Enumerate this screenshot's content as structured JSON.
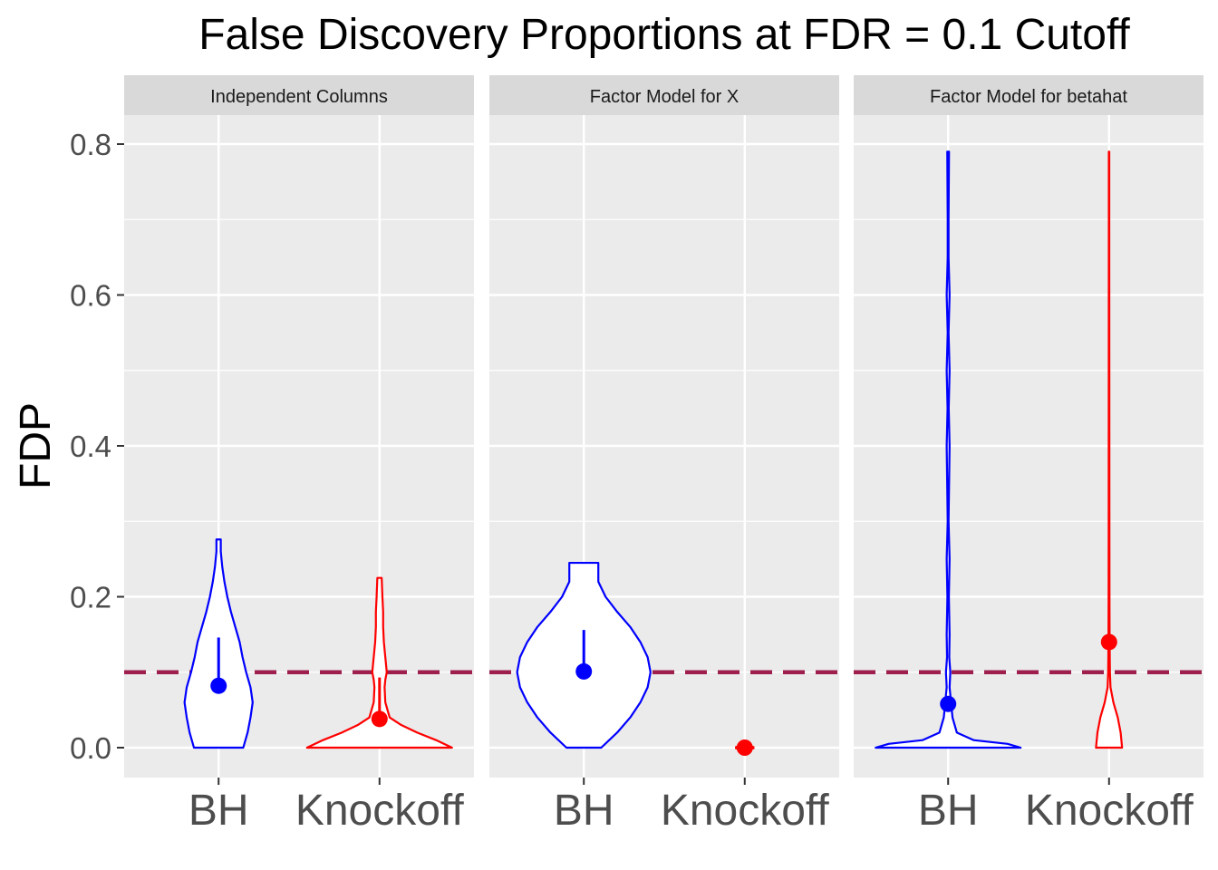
{
  "chart_data": {
    "type": "violin",
    "title": "False Discovery Proportions at FDR = 0.1 Cutoff",
    "ylabel": "FDP",
    "xlabel": "",
    "ylim": [
      -0.04,
      0.88
    ],
    "yticks": [
      0.0,
      0.2,
      0.4,
      0.6,
      0.8
    ],
    "ytick_labels": [
      "0.0",
      "0.2",
      "0.4",
      "0.6",
      "0.8"
    ],
    "categories": [
      "BH",
      "Knockoff"
    ],
    "reference_line": {
      "y": 0.1,
      "style": "dashed",
      "color": "#9e1f4e"
    },
    "grid": true,
    "legend": "none",
    "colors": {
      "BH": "#0000ff",
      "Knockoff": "#ff0000"
    },
    "panels": [
      {
        "label": "Independent Columns",
        "series": [
          {
            "category": "BH",
            "mean": 0.082,
            "upper": 0.146,
            "profile": [
              [
                0.0,
                0.34
              ],
              [
                0.02,
                0.4
              ],
              [
                0.04,
                0.44
              ],
              [
                0.06,
                0.47
              ],
              [
                0.08,
                0.44
              ],
              [
                0.1,
                0.38
              ],
              [
                0.12,
                0.33
              ],
              [
                0.14,
                0.29
              ],
              [
                0.16,
                0.23
              ],
              [
                0.18,
                0.17
              ],
              [
                0.2,
                0.12
              ],
              [
                0.22,
                0.08
              ],
              [
                0.24,
                0.05
              ],
              [
                0.26,
                0.03
              ],
              [
                0.276,
                0.03
              ]
            ]
          },
          {
            "category": "Knockoff",
            "mean": 0.038,
            "upper": 0.093,
            "profile": [
              [
                0.0,
                1.0
              ],
              [
                0.01,
                0.78
              ],
              [
                0.02,
                0.52
              ],
              [
                0.03,
                0.3
              ],
              [
                0.04,
                0.14
              ],
              [
                0.06,
                0.08
              ],
              [
                0.08,
                0.07
              ],
              [
                0.09,
                0.08
              ],
              [
                0.1,
                0.1
              ],
              [
                0.12,
                0.08
              ],
              [
                0.14,
                0.06
              ],
              [
                0.16,
                0.05
              ],
              [
                0.18,
                0.05
              ],
              [
                0.2,
                0.04
              ],
              [
                0.225,
                0.03
              ]
            ]
          }
        ]
      },
      {
        "label": "Factor Model for X",
        "series": [
          {
            "category": "BH",
            "mean": 0.101,
            "upper": 0.156,
            "profile": [
              [
                0.0,
                0.24
              ],
              [
                0.02,
                0.46
              ],
              [
                0.04,
                0.64
              ],
              [
                0.06,
                0.78
              ],
              [
                0.08,
                0.88
              ],
              [
                0.1,
                0.92
              ],
              [
                0.12,
                0.88
              ],
              [
                0.14,
                0.78
              ],
              [
                0.16,
                0.64
              ],
              [
                0.18,
                0.46
              ],
              [
                0.2,
                0.3
              ],
              [
                0.22,
                0.2
              ],
              [
                0.245,
                0.2
              ]
            ]
          },
          {
            "category": "Knockoff",
            "mean": 0.0,
            "upper": 0.0,
            "profile": [
              [
                -0.001,
                0.12
              ],
              [
                0.0,
                0.12
              ],
              [
                0.001,
                0.12
              ]
            ]
          }
        ]
      },
      {
        "label": "Factor Model for betahat",
        "series": [
          {
            "category": "BH",
            "mean": 0.058,
            "upper": 0.06,
            "profile": [
              [
                0.0,
                1.0
              ],
              [
                0.005,
                0.82
              ],
              [
                0.01,
                0.35
              ],
              [
                0.02,
                0.12
              ],
              [
                0.04,
                0.06
              ],
              [
                0.06,
                0.04
              ],
              [
                0.08,
                0.02
              ],
              [
                0.1,
                0.03
              ],
              [
                0.12,
                0.015
              ],
              [
                0.15,
                0.02
              ],
              [
                0.2,
                0.01
              ],
              [
                0.25,
                0.02
              ],
              [
                0.3,
                0.006
              ],
              [
                0.4,
                0.02
              ],
              [
                0.45,
                0.008
              ],
              [
                0.5,
                0.02
              ],
              [
                0.55,
                0.006
              ],
              [
                0.6,
                0.02
              ],
              [
                0.65,
                0.006
              ],
              [
                0.7,
                0.006
              ],
              [
                0.79,
                0.012
              ]
            ]
          },
          {
            "category": "Knockoff",
            "mean": 0.14,
            "upper": 0.14,
            "profile": [
              [
                0.0,
                0.18
              ],
              [
                0.02,
                0.16
              ],
              [
                0.04,
                0.12
              ],
              [
                0.06,
                0.06
              ],
              [
                0.08,
                0.02
              ],
              [
                0.1,
                0.012
              ],
              [
                0.14,
                0.008
              ],
              [
                0.2,
                0.006
              ],
              [
                0.3,
                0.005
              ],
              [
                0.5,
                0.004
              ],
              [
                0.7,
                0.003
              ],
              [
                0.79,
                0.003
              ]
            ]
          }
        ]
      }
    ]
  }
}
